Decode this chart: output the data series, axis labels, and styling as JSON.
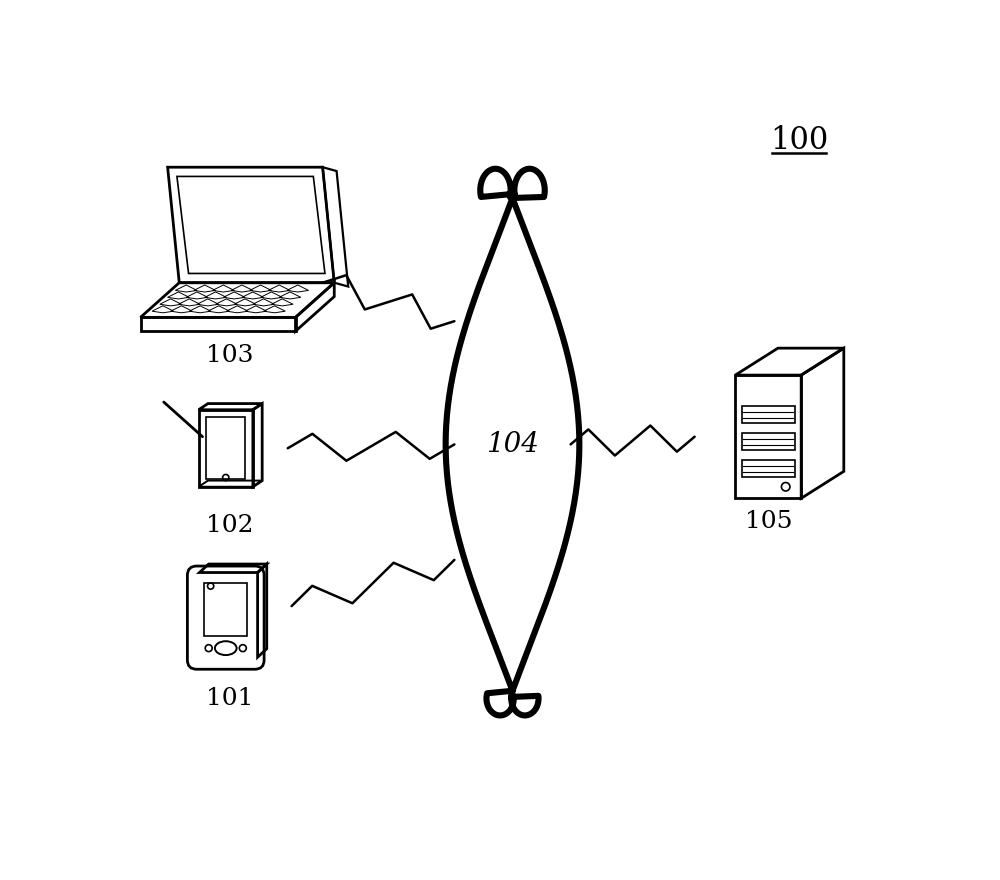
{
  "background_color": "#ffffff",
  "label_100": "100",
  "label_104": "104",
  "label_103": "103",
  "label_102": "102",
  "label_101": "101",
  "label_105": "105",
  "font_size_labels": 18,
  "font_size_100": 22,
  "line_color": "#000000",
  "line_width": 2.0
}
